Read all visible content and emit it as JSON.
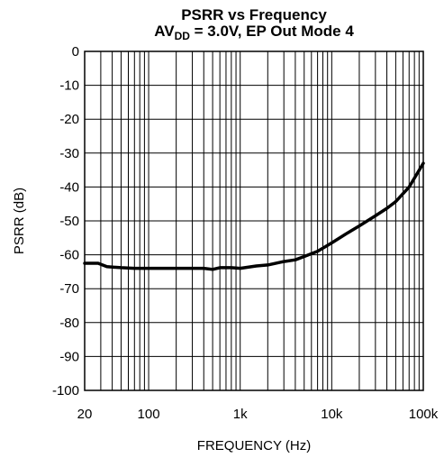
{
  "chart_data": {
    "type": "line",
    "title_line1": "PSRR vs Frequency",
    "title_line2": {
      "prefix": "AV",
      "subscript": "DD",
      "suffix": " = 3.0V, EP Out Mode 4"
    },
    "xlabel": "FREQUENCY (Hz)",
    "ylabel": "PSRR (dB)",
    "x_scale": "log",
    "xlim": [
      20,
      100000
    ],
    "ylim": [
      -100,
      0
    ],
    "grid": true,
    "x_tick_labels": [
      {
        "value": 20,
        "label": "20"
      },
      {
        "value": 100,
        "label": "100"
      },
      {
        "value": 1000,
        "label": "1k"
      },
      {
        "value": 10000,
        "label": "10k"
      },
      {
        "value": 100000,
        "label": "100k"
      }
    ],
    "y_ticks": [
      0,
      -10,
      -20,
      -30,
      -40,
      -50,
      -60,
      -70,
      -80,
      -90,
      -100
    ],
    "series": [
      {
        "x": [
          20,
          28,
          35,
          50,
          70,
          100,
          150,
          200,
          300,
          400,
          500,
          600,
          800,
          1000,
          1500,
          2000,
          3000,
          4000,
          5000,
          7000,
          10000,
          15000,
          20000,
          30000,
          40000,
          50000,
          70000,
          100000
        ],
        "y": [
          -62.5,
          -62.5,
          -63.5,
          -63.8,
          -64,
          -64,
          -64,
          -64,
          -64,
          -64,
          -64.3,
          -63.8,
          -63.8,
          -64,
          -63.3,
          -63,
          -62,
          -61.5,
          -60.5,
          -59,
          -56.5,
          -53.5,
          -51.5,
          -48.5,
          -46.3,
          -44.3,
          -40,
          -33
        ]
      }
    ]
  },
  "colors": {
    "line": "#000000",
    "grid": "#000000",
    "background": "#ffffff"
  }
}
